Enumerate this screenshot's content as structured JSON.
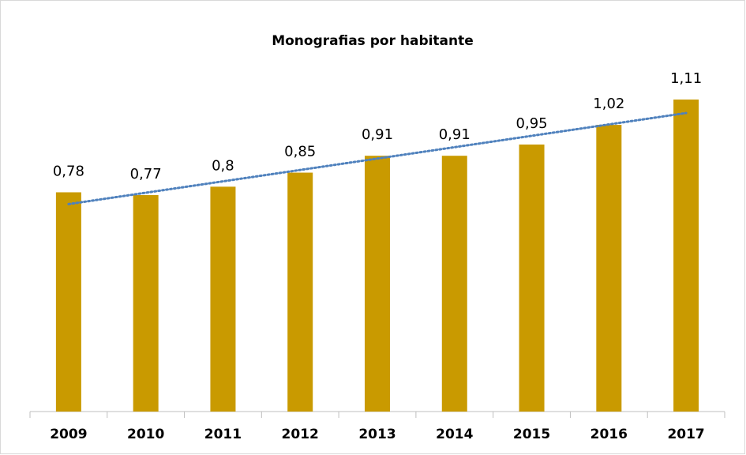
{
  "chart_data": {
    "type": "bar",
    "title": "Monografias por habitante",
    "categories": [
      "2009",
      "2010",
      "2011",
      "2012",
      "2013",
      "2014",
      "2015",
      "2016",
      "2017"
    ],
    "values": [
      0.78,
      0.77,
      0.8,
      0.85,
      0.91,
      0.91,
      0.95,
      1.02,
      1.11
    ],
    "value_labels": [
      "0,78",
      "0,77",
      "0,8",
      "0,85",
      "0,91",
      "0,91",
      "0,95",
      "1,02",
      "1,11"
    ],
    "color": "#c99a00",
    "ylim": [
      0,
      1.2
    ],
    "trendline": {
      "type": "linear",
      "color": "#4f81bd"
    }
  }
}
